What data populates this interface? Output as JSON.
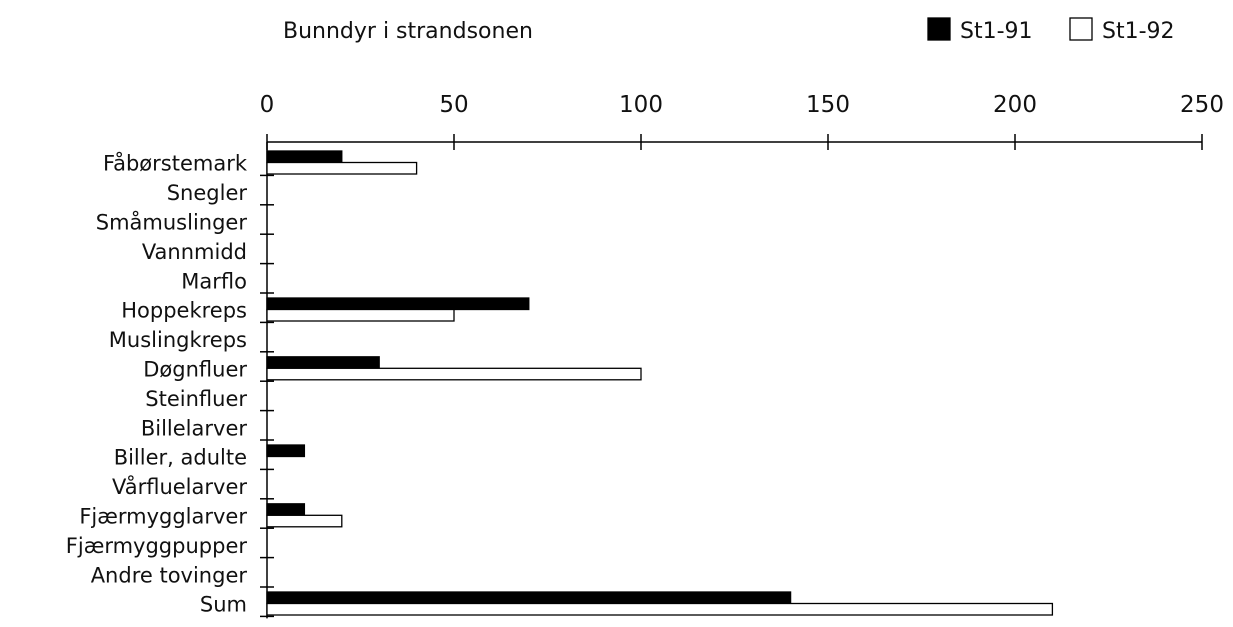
{
  "chart_data": {
    "type": "bar",
    "orientation": "horizontal",
    "title": "Bunndyr i strandsonen",
    "xlim": [
      0,
      250
    ],
    "x_ticks": [
      0,
      50,
      100,
      150,
      200,
      250
    ],
    "grid": false,
    "legend_position": "top-right",
    "categories": [
      "Fåbørstemark",
      "Snegler",
      "Småmuslinger",
      "Vannmidd",
      "Marflo",
      "Hoppekreps",
      "Muslingkreps",
      "Døgnfluer",
      "Steinfluer",
      "Billelarver",
      "Biller, adulte",
      "Vårfluelarver",
      "Fjærmygglarver",
      "Fjærmyggpupper",
      "Andre tovinger",
      "Sum"
    ],
    "series": [
      {
        "name": "St1-91",
        "color": "#000000",
        "values": [
          20,
          0,
          0,
          0,
          0,
          70,
          0,
          30,
          0,
          0,
          10,
          0,
          10,
          0,
          0,
          140
        ]
      },
      {
        "name": "St1-92",
        "color": "#ffffff",
        "values": [
          40,
          0,
          0,
          0,
          0,
          50,
          0,
          100,
          0,
          0,
          0,
          0,
          20,
          0,
          0,
          210
        ]
      }
    ]
  }
}
